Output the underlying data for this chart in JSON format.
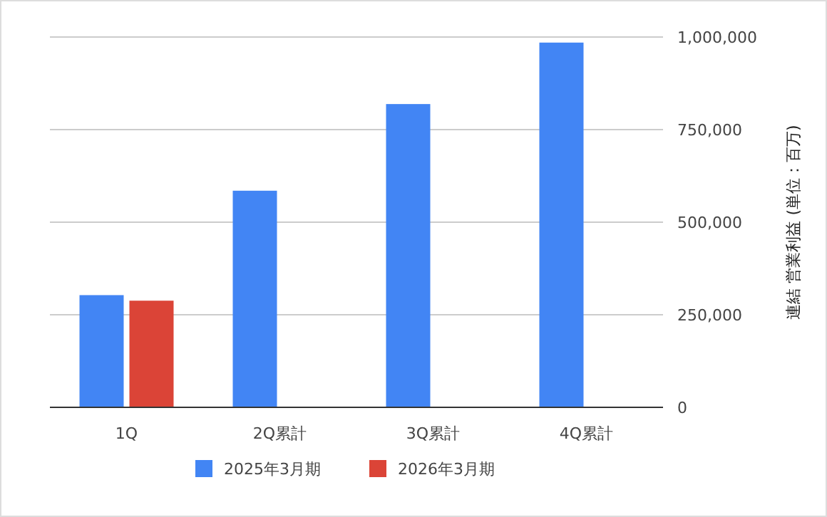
{
  "chart_data": {
    "type": "bar",
    "categories": [
      "1Q",
      "2Q累計",
      "3Q累計",
      "4Q累計"
    ],
    "series": [
      {
        "name": "2025年3月期",
        "color": "#4285f4",
        "values": [
          303000,
          585000,
          819000,
          985000
        ]
      },
      {
        "name": "2026年3月期",
        "color": "#db4437",
        "values": [
          288000,
          null,
          null,
          null
        ]
      }
    ],
    "ylabel": "連結 営業利益 (単位：百万)",
    "ylim": [
      0,
      1000000
    ],
    "yticks": [
      {
        "value": 0,
        "label": "0"
      },
      {
        "value": 250000,
        "label": "250,000"
      },
      {
        "value": 500000,
        "label": "500,000"
      },
      {
        "value": 750000,
        "label": "750,000"
      },
      {
        "value": 1000000,
        "label": "1,000,000"
      }
    ],
    "grid": "y",
    "legend": "bottom"
  }
}
